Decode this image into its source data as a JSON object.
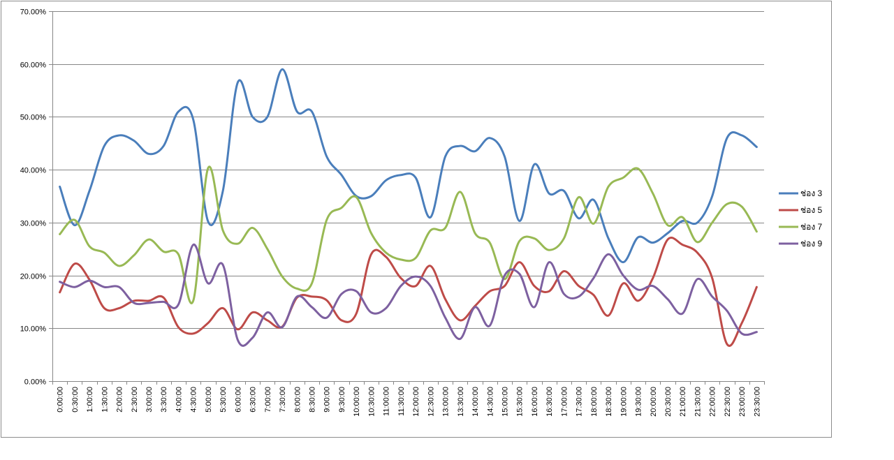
{
  "chart_data": {
    "type": "line",
    "title": "",
    "xlabel": "",
    "ylabel": "",
    "ylim": [
      0,
      70
    ],
    "y_ticks": [
      0,
      10,
      20,
      30,
      40,
      50,
      60,
      70
    ],
    "y_tick_labels": [
      "0.00%",
      "10.00%",
      "20.00%",
      "30.00%",
      "40.00%",
      "50.00%",
      "60.00%",
      "70.00%"
    ],
    "grid": true,
    "legend_position": "right",
    "smooth": true,
    "categories": [
      "0:00:00",
      "0:30:00",
      "1:00:00",
      "1:30:00",
      "2:00:00",
      "2:30:00",
      "3:00:00",
      "3:30:00",
      "4:00:00",
      "4:30:00",
      "5:00:00",
      "5:30:00",
      "6:00:00",
      "6:30:00",
      "7:00:00",
      "7:30:00",
      "8:00:00",
      "8:30:00",
      "9:00:00",
      "9:30:00",
      "10:00:00",
      "10:30:00",
      "11:00:00",
      "11:30:00",
      "12:00:00",
      "12:30:00",
      "13:00:00",
      "13:30:00",
      "14:00:00",
      "14:30:00",
      "15:00:00",
      "15:30:00",
      "16:00:00",
      "16:30:00",
      "17:00:00",
      "17:30:00",
      "18:00:00",
      "18:30:00",
      "19:00:00",
      "19:30:00",
      "20:00:00",
      "20:30:00",
      "21:00:00",
      "21:30:00",
      "22:00:00",
      "22:30:00",
      "23:00:00",
      "23:30:00"
    ],
    "series": [
      {
        "name": "ช่อง 3",
        "color": "#4a7ebb",
        "values": [
          36.8,
          29.5,
          36.0,
          44.5,
          46.5,
          45.5,
          43.0,
          44.5,
          51.0,
          49.5,
          30.2,
          36.0,
          56.5,
          50.0,
          50.0,
          59.0,
          51.0,
          51.0,
          42.5,
          39.0,
          35.0,
          35.0,
          38.0,
          39.0,
          38.5,
          31.0,
          42.5,
          44.5,
          43.5,
          46.0,
          42.5,
          30.3,
          41.0,
          35.5,
          36.0,
          30.8,
          34.3,
          27.0,
          22.5,
          27.2,
          26.2,
          28.0,
          30.3,
          30.0,
          35.0,
          46.0,
          46.5,
          44.3
        ]
      },
      {
        "name": "ช่อง 5",
        "color": "#be4b48",
        "values": [
          16.8,
          22.2,
          19.2,
          13.8,
          13.8,
          15.2,
          15.2,
          15.8,
          10.2,
          9.0,
          11.0,
          13.8,
          9.8,
          13.0,
          11.5,
          10.3,
          15.8,
          16.0,
          15.3,
          11.5,
          12.8,
          24.0,
          23.5,
          19.5,
          18.0,
          21.8,
          15.5,
          11.5,
          14.2,
          17.0,
          18.0,
          22.5,
          18.0,
          17.0,
          20.8,
          18.0,
          16.3,
          12.4,
          18.5,
          15.2,
          19.5,
          26.8,
          25.8,
          24.3,
          19.5,
          7.0,
          11.0,
          17.8
        ]
      },
      {
        "name": "ช่อง 7",
        "color": "#98b954",
        "values": [
          27.8,
          30.5,
          25.5,
          24.3,
          21.8,
          23.8,
          26.8,
          24.5,
          24.0,
          15.2,
          40.3,
          28.5,
          26.0,
          29.0,
          25.0,
          19.8,
          17.5,
          18.5,
          30.5,
          32.8,
          34.8,
          28.0,
          24.3,
          23.0,
          23.3,
          28.5,
          29.0,
          35.8,
          28.0,
          26.2,
          19.3,
          26.5,
          27.0,
          24.8,
          27.0,
          34.8,
          29.8,
          36.8,
          38.5,
          40.2,
          35.5,
          29.5,
          31.0,
          26.3,
          30.0,
          33.5,
          33.0,
          28.3
        ]
      },
      {
        "name": "ช่อง 9",
        "color": "#7d60a0",
        "values": [
          18.8,
          17.8,
          19.0,
          17.8,
          17.8,
          14.8,
          14.8,
          15.0,
          14.5,
          25.8,
          18.5,
          22.0,
          7.8,
          8.2,
          13.0,
          10.2,
          16.0,
          14.0,
          12.0,
          16.5,
          17.0,
          13.0,
          13.8,
          18.0,
          19.8,
          18.0,
          12.0,
          8.0,
          14.0,
          10.5,
          20.0,
          20.3,
          14.0,
          22.5,
          16.5,
          16.0,
          19.5,
          24.0,
          20.0,
          17.3,
          18.0,
          15.5,
          12.8,
          19.3,
          16.0,
          13.3,
          9.0,
          9.3
        ]
      }
    ]
  }
}
